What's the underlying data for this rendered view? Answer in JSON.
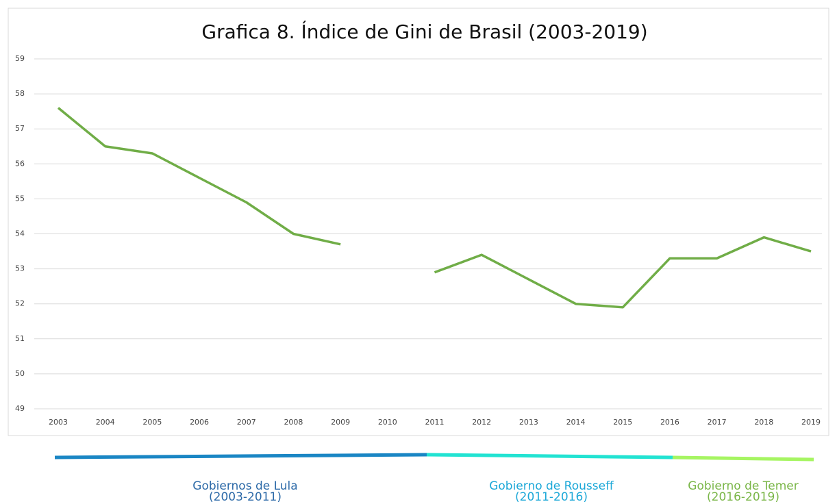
{
  "chart_data": {
    "type": "line",
    "title": "Grafica 8. Índice de Gini de Brasil (2003-2019)",
    "categories": [
      "2003",
      "2004",
      "2005",
      "2006",
      "2007",
      "2008",
      "2009",
      "2010",
      "2011",
      "2012",
      "2013",
      "2014",
      "2015",
      "2016",
      "2017",
      "2018",
      "2019"
    ],
    "series": [
      {
        "name": "Índice de Gini",
        "color": "#70ad47",
        "values": [
          57.6,
          56.5,
          56.3,
          55.6,
          54.9,
          54.0,
          53.7,
          null,
          52.9,
          53.4,
          52.7,
          52.0,
          51.9,
          53.3,
          53.3,
          53.9,
          53.5
        ]
      }
    ],
    "ylim": [
      49,
      59
    ],
    "yticks": [
      49,
      50,
      51,
      52,
      53,
      54,
      55,
      56,
      57,
      58,
      59
    ],
    "grid": true,
    "legend": false,
    "periods": [
      {
        "lines": [
          "Gobiernos de Lula",
          "(2003-2011)"
        ],
        "color": "#2d6aa8",
        "bar_color": "#1a86c4"
      },
      {
        "lines": [
          "Gobierno de Rousseff",
          "(2011-2016)"
        ],
        "color": "#1ca8d8",
        "bar_color": "#22e3d2"
      },
      {
        "lines": [
          "Gobierno de Temer",
          "(2016-2019)"
        ],
        "color": "#7ab648",
        "bar_color": "#a6f562"
      }
    ]
  }
}
